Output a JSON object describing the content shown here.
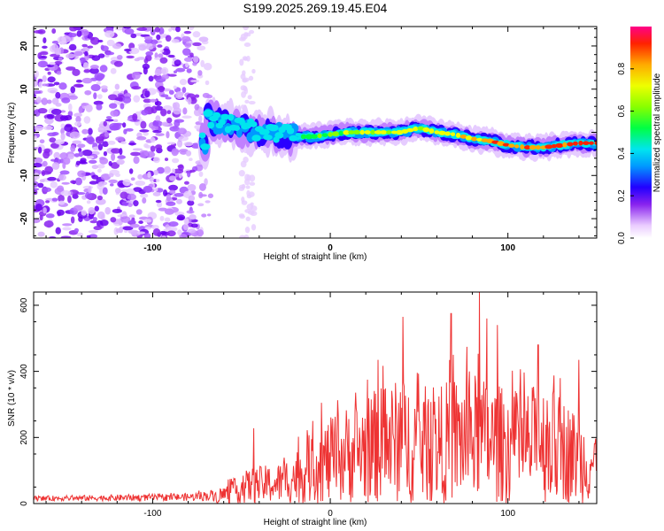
{
  "title": "S199.2025.269.19.45.E04",
  "chart_data": [
    {
      "type": "heatmap",
      "name": "spectrogram",
      "xlabel": "Height of straight line (km)",
      "ylabel": "Frequency (Hz)",
      "xlim": [
        -167,
        150
      ],
      "ylim": [
        -24.5,
        24.5
      ],
      "xticks": [
        -100,
        0,
        100
      ],
      "yticks": [
        -20,
        -10,
        0,
        10,
        20
      ],
      "colorbar": {
        "label": "Normalized spectral amplitude",
        "range": [
          0,
          1
        ],
        "ticks": [
          0.0,
          0.2,
          0.4,
          0.6,
          0.8
        ]
      },
      "ridge": {
        "description_points_km_hz": [
          [
            -70,
            3
          ],
          [
            -60,
            2
          ],
          [
            -50,
            1
          ],
          [
            -40,
            0.5
          ],
          [
            -30,
            0
          ],
          [
            -20,
            -1
          ],
          [
            -10,
            -1
          ],
          [
            0,
            -0.5
          ],
          [
            10,
            0
          ],
          [
            20,
            0
          ],
          [
            30,
            0
          ],
          [
            40,
            0
          ],
          [
            50,
            1
          ],
          [
            60,
            0
          ],
          [
            70,
            -0.5
          ],
          [
            80,
            -1.5
          ],
          [
            90,
            -2
          ],
          [
            100,
            -3
          ],
          [
            110,
            -3.5
          ],
          [
            120,
            -3.5
          ],
          [
            130,
            -3
          ],
          [
            140,
            -2.5
          ],
          [
            150,
            -2.5
          ]
        ]
      }
    },
    {
      "type": "line",
      "name": "snr",
      "xlabel": "Height of straight line (km)",
      "ylabel": "SNR (10 * v/v)",
      "xlim": [
        -167,
        150
      ],
      "ylim": [
        0,
        640
      ],
      "xticks": [
        -100,
        0,
        100
      ],
      "yticks": [
        0,
        200,
        400,
        600
      ],
      "series_color": "#ee3333",
      "envelope_km_snr": [
        [
          -167,
          20
        ],
        [
          -140,
          22
        ],
        [
          -110,
          25
        ],
        [
          -80,
          28
        ],
        [
          -65,
          40
        ],
        [
          -55,
          70
        ],
        [
          -45,
          110
        ],
        [
          -30,
          120
        ],
        [
          -20,
          160
        ],
        [
          -10,
          220
        ],
        [
          0,
          260
        ],
        [
          10,
          300
        ],
        [
          20,
          330
        ],
        [
          30,
          360
        ],
        [
          40,
          380
        ],
        [
          50,
          360
        ],
        [
          60,
          350
        ],
        [
          70,
          390
        ],
        [
          80,
          400
        ],
        [
          90,
          370
        ],
        [
          100,
          350
        ],
        [
          110,
          340
        ],
        [
          118,
          380
        ],
        [
          130,
          330
        ],
        [
          140,
          270
        ],
        [
          150,
          240
        ]
      ],
      "peaks_km_snr": [
        [
          -43,
          228
        ],
        [
          -10,
          250
        ],
        [
          -5,
          305
        ],
        [
          27,
          435
        ],
        [
          41,
          565
        ],
        [
          68,
          575
        ],
        [
          84,
          640
        ],
        [
          88,
          560
        ],
        [
          94,
          540
        ],
        [
          117,
          480
        ],
        [
          140,
          435
        ]
      ]
    }
  ],
  "colors": {
    "line": "#ee3333",
    "axes": "#000000",
    "background": "#ffffff"
  }
}
